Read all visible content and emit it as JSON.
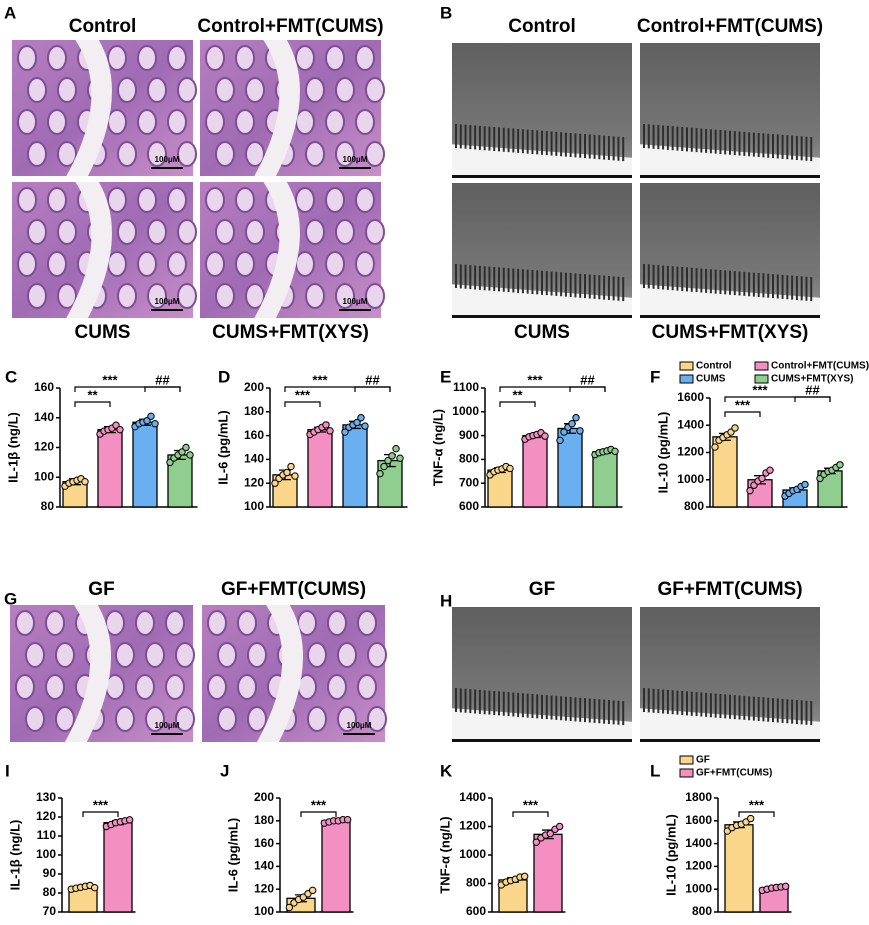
{
  "micrographs": [
    {
      "panel": "A",
      "kind": "histology",
      "captions": [
        "Control",
        "Control+FMT(CUMS)",
        "CUMS",
        "CUMS+FMT(XYS)"
      ],
      "scale_bar": "100μM"
    },
    {
      "panel": "B",
      "kind": "tem",
      "captions": [
        "Control",
        "Control+FMT(CUMS)",
        "CUMS",
        "CUMS+FMT(XYS)"
      ]
    },
    {
      "panel": "G",
      "kind": "histology",
      "captions": [
        "GF",
        "GF+FMT(CUMS)"
      ],
      "scale_bar": "100μM"
    },
    {
      "panel": "H",
      "kind": "tem",
      "captions": [
        "GF",
        "GF+FMT(CUMS)"
      ]
    }
  ],
  "chart_data": [
    {
      "type": "bar",
      "panel": "C",
      "ylabel": "IL-1β (ng/L)",
      "ylim": [
        80,
        160
      ],
      "yticks": [
        80,
        100,
        120,
        140,
        160
      ],
      "values": [
        97,
        132,
        137,
        115
      ],
      "errors": [
        2,
        2,
        2,
        3
      ],
      "colors": [
        "#f9d68a",
        "#f48fc2",
        "#6ab0f0",
        "#8fce8f"
      ],
      "points": [
        [
          94,
          96,
          97,
          98,
          99,
          97
        ],
        [
          129,
          131,
          132,
          133,
          135,
          132
        ],
        [
          134,
          136,
          137,
          138,
          141,
          136
        ],
        [
          110,
          113,
          115,
          117,
          120,
          115
        ]
      ],
      "annotations": [
        "**",
        "***",
        "##"
      ]
    },
    {
      "type": "bar",
      "panel": "D",
      "ylabel": "IL-6 (pg/mL)",
      "ylim": [
        100,
        200
      ],
      "yticks": [
        100,
        120,
        140,
        160,
        180,
        200
      ],
      "values": [
        127,
        165,
        169,
        139
      ],
      "errors": [
        4,
        2,
        3,
        5
      ],
      "colors": [
        "#f9d68a",
        "#f48fc2",
        "#6ab0f0",
        "#8fce8f"
      ],
      "points": [
        [
          120,
          124,
          127,
          129,
          134,
          126
        ],
        [
          161,
          163,
          165,
          167,
          169,
          164
        ],
        [
          163,
          167,
          169,
          171,
          175,
          168
        ],
        [
          128,
          134,
          139,
          143,
          149,
          141
        ]
      ],
      "annotations": [
        "***",
        "***",
        "##"
      ]
    },
    {
      "type": "bar",
      "panel": "E",
      "ylabel": "TNF-α (ng/L)",
      "ylim": [
        600,
        1100
      ],
      "yticks": [
        600,
        700,
        800,
        900,
        1000,
        1100
      ],
      "values": [
        755,
        900,
        930,
        832
      ],
      "errors": [
        10,
        8,
        20,
        6
      ],
      "colors": [
        "#f9d68a",
        "#f48fc2",
        "#6ab0f0",
        "#8fce8f"
      ],
      "points": [
        [
          735,
          748,
          755,
          760,
          770,
          762
        ],
        [
          885,
          895,
          900,
          905,
          912,
          898
        ],
        [
          880,
          915,
          935,
          950,
          975,
          920
        ],
        [
          820,
          828,
          832,
          836,
          842,
          834
        ]
      ],
      "annotations": [
        "**",
        "***",
        "##"
      ]
    },
    {
      "type": "bar",
      "panel": "F",
      "ylabel": "IL-10 (pg/mL)",
      "ylim": [
        800,
        1600
      ],
      "yticks": [
        800,
        1000,
        1200,
        1400,
        1600
      ],
      "values": [
        1315,
        1000,
        925,
        1065
      ],
      "errors": [
        25,
        30,
        15,
        20
      ],
      "colors": [
        "#f9d68a",
        "#f48fc2",
        "#6ab0f0",
        "#8fce8f"
      ],
      "legend": [
        "Control",
        "Control+FMT(CUMS)",
        "CUMS",
        "CUMS+FMT(XYS)"
      ],
      "points": [
        [
          1240,
          1290,
          1310,
          1330,
          1350,
          1380
        ],
        [
          920,
          960,
          990,
          1010,
          1050,
          1070
        ],
        [
          880,
          900,
          920,
          930,
          950,
          965
        ],
        [
          1010,
          1040,
          1060,
          1070,
          1090,
          1110
        ]
      ],
      "annotations": [
        "***",
        "***",
        "##"
      ]
    },
    {
      "type": "bar",
      "panel": "I",
      "ylabel": "IL-1β (ng/L)",
      "ylim": [
        70,
        130
      ],
      "yticks": [
        70,
        80,
        90,
        100,
        110,
        120,
        130
      ],
      "values": [
        83,
        117
      ],
      "errors": [
        0.5,
        1
      ],
      "colors": [
        "#f9d68a",
        "#f48fc2"
      ],
      "points": [
        [
          82,
          82.5,
          83,
          83.5,
          84,
          82.8
        ],
        [
          115,
          116,
          117,
          117.5,
          118,
          118.5
        ]
      ],
      "annotations": [
        "***"
      ]
    },
    {
      "type": "bar",
      "panel": "J",
      "ylabel": "IL-6 (pg/mL)",
      "ylim": [
        100,
        200
      ],
      "yticks": [
        100,
        120,
        140,
        160,
        180,
        200
      ],
      "values": [
        112,
        180
      ],
      "errors": [
        3,
        1
      ],
      "colors": [
        "#f9d68a",
        "#f48fc2"
      ],
      "points": [
        [
          104,
          108,
          111,
          113,
          116,
          119
        ],
        [
          178,
          179,
          180,
          180,
          181,
          181
        ]
      ],
      "annotations": [
        "***"
      ]
    },
    {
      "type": "bar",
      "panel": "K",
      "ylabel": "TNF-α (ng/L)",
      "ylim": [
        600,
        1400
      ],
      "yticks": [
        600,
        800,
        1000,
        1200,
        1400
      ],
      "values": [
        825,
        1145
      ],
      "errors": [
        15,
        30
      ],
      "colors": [
        "#f9d68a",
        "#f48fc2"
      ],
      "points": [
        [
          790,
          810,
          820,
          830,
          845,
          850
        ],
        [
          1090,
          1120,
          1140,
          1150,
          1180,
          1200
        ]
      ],
      "annotations": [
        "***"
      ]
    },
    {
      "type": "bar",
      "panel": "L",
      "ylabel": "IL-10 (pg/mL)",
      "ylim": [
        800,
        1800
      ],
      "yticks": [
        800,
        1000,
        1200,
        1400,
        1600,
        1800
      ],
      "values": [
        1565,
        1010
      ],
      "errors": [
        25,
        10
      ],
      "colors": [
        "#f9d68a",
        "#f48fc2"
      ],
      "legend": [
        "GF",
        "GF+FMT(CUMS)"
      ],
      "points": [
        [
          1510,
          1540,
          1560,
          1570,
          1590,
          1620
        ],
        [
          990,
          1000,
          1010,
          1015,
          1020,
          1025
        ]
      ],
      "annotations": [
        "***"
      ]
    }
  ]
}
